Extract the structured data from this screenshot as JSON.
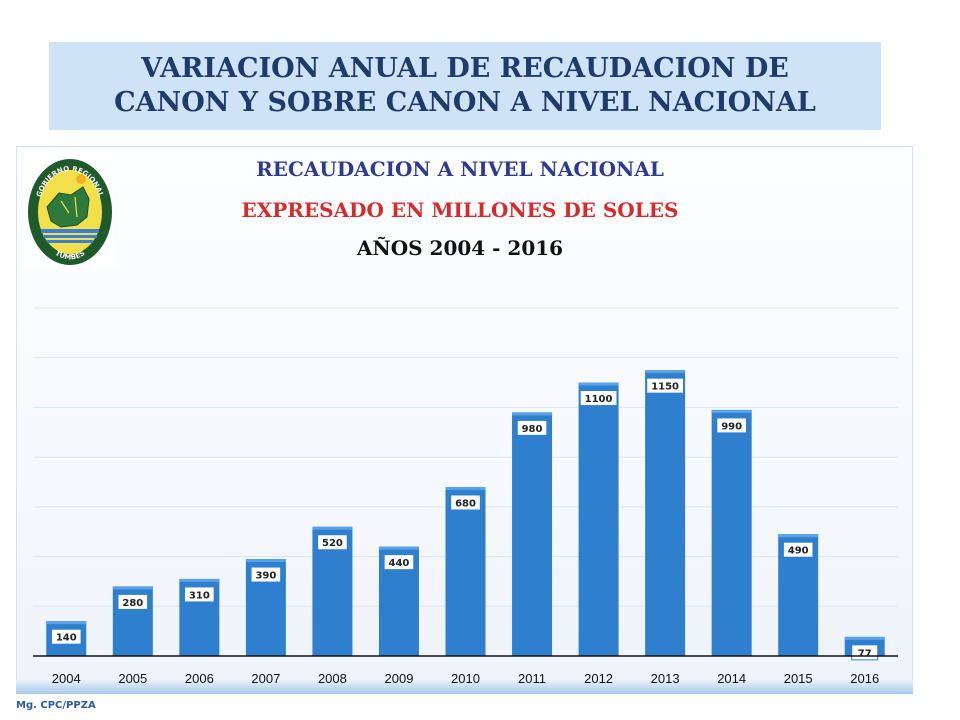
{
  "slide_title": {
    "line1": "VARIACION ANUAL DE RECAUDACION DE",
    "line2": "CANON Y SOBRE CANON A NIVEL NACIONAL"
  },
  "logo": {
    "top_text": "GOBIERNO REGIONAL",
    "bottom_text": "TUMBES",
    "colors": {
      "ring": "#1f5a2a",
      "fill": "#f2e04a",
      "water": "#3d7fd6",
      "land": "#2f7a3a"
    }
  },
  "footer": {
    "credit": "Mg. CPC/PPZA"
  },
  "colors": {
    "bar": "#2f7fcf",
    "bar_top": "#5aa2e6",
    "grid": "#dbe6f1",
    "axis": "#111111",
    "label_border": "#2f7fcf"
  },
  "chart_data": {
    "type": "bar",
    "title": "RECAUDACION A NIVEL NACIONAL",
    "subtitle": "EXPRESADO EN MILLONES DE SOLES",
    "subtitle2": "AÑOS 2004 - 2016",
    "categories": [
      "2004",
      "2005",
      "2006",
      "2007",
      "2008",
      "2009",
      "2010",
      "2011",
      "2012",
      "2013",
      "2014",
      "2015",
      "2016"
    ],
    "values": [
      140,
      280,
      310,
      390,
      520,
      440,
      680,
      980,
      1100,
      1150,
      990,
      490,
      77
    ],
    "data_labels": [
      "140",
      "280",
      "310",
      "390",
      "520",
      "440",
      "680",
      "980",
      "1100",
      "1150",
      "990",
      "490",
      "77"
    ],
    "ylim": [
      0,
      1400
    ],
    "grid": true,
    "legend": "none",
    "xlabel": "",
    "ylabel": ""
  }
}
